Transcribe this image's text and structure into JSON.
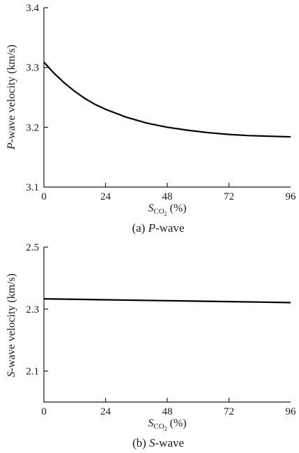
{
  "chart_data": [
    {
      "type": "line",
      "caption": {
        "prefix": "(a) ",
        "italic": "P",
        "rest": "-wave"
      },
      "ylabel": {
        "italic": "P",
        "rest": "-wave velocity (km/s)"
      },
      "xlabel": {
        "italic": "S",
        "sub": "CO",
        "subsub": "2",
        "rest": " (%)"
      },
      "xlim": [
        0,
        96
      ],
      "ylim": [
        3.1,
        3.4
      ],
      "xticks": [
        0,
        24,
        48,
        72,
        96
      ],
      "yticks": [
        3.1,
        3.2,
        3.3,
        3.4
      ],
      "ytick_labels": [
        "3.1",
        "3.2",
        "3.3",
        "3.4"
      ],
      "series": [
        {
          "x": [
            0,
            4,
            8,
            12,
            16,
            20,
            24,
            32,
            40,
            48,
            56,
            64,
            72,
            80,
            88,
            96
          ],
          "y": [
            3.309,
            3.29,
            3.274,
            3.26,
            3.248,
            3.238,
            3.23,
            3.217,
            3.207,
            3.2,
            3.195,
            3.191,
            3.188,
            3.186,
            3.185,
            3.184
          ]
        }
      ]
    },
    {
      "type": "line",
      "caption": {
        "prefix": "(b)  ",
        "italic": "S",
        "rest": "-wave"
      },
      "ylabel": {
        "italic": "S",
        "rest": "-wave velocity (km/s)"
      },
      "xlabel": {
        "italic": "S",
        "sub": "CO",
        "subsub": "2",
        "rest": " (%)"
      },
      "xlim": [
        0,
        96
      ],
      "ylim": [
        2.0,
        2.5
      ],
      "xticks": [
        0,
        24,
        48,
        72,
        96
      ],
      "yticks": [
        2.1,
        2.3,
        2.5
      ],
      "ytick_labels": [
        "2.1",
        "2.3",
        "2.5"
      ],
      "series": [
        {
          "x": [
            0,
            24,
            48,
            72,
            96
          ],
          "y": [
            2.333,
            2.33,
            2.327,
            2.324,
            2.321
          ]
        }
      ]
    }
  ]
}
